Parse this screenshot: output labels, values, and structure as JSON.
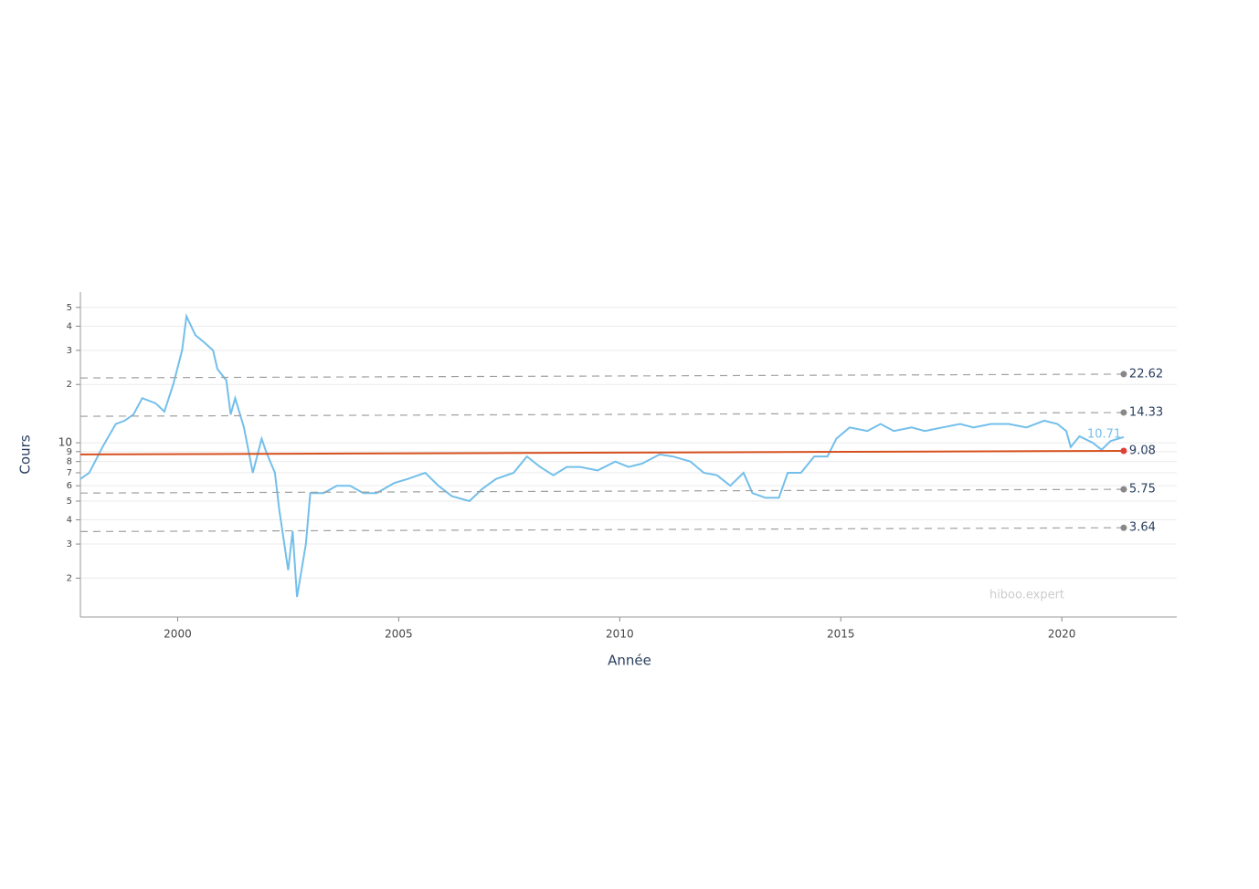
{
  "chart_data": {
    "type": "line",
    "xlabel": "Année",
    "ylabel": "Cours",
    "watermark": "hiboo.expert",
    "log_y": true,
    "grid": true,
    "xlim": [
      1997.8,
      2022.6
    ],
    "ylim": [
      1.26,
      60
    ],
    "xticks": [
      2000,
      2005,
      2010,
      2015,
      2020
    ],
    "yticks": [
      2,
      3,
      4,
      5,
      6,
      7,
      8,
      9,
      10,
      {
        "value": 20,
        "label": "2"
      },
      {
        "value": 30,
        "label": "3"
      },
      {
        "value": 40,
        "label": "4"
      },
      {
        "value": 50,
        "label": "5"
      }
    ],
    "series": [
      {
        "color": "#73bfea",
        "dash": false,
        "end_label": "10.71",
        "x": [
          1997.8,
          1998.0,
          1998.3,
          1998.6,
          1998.8,
          1999.0,
          1999.2,
          1999.5,
          1999.7,
          1999.9,
          2000.1,
          2000.2,
          2000.4,
          2000.6,
          2000.8,
          2000.9,
          2001.1,
          2001.2,
          2001.3,
          2001.5,
          2001.7,
          2001.9,
          2002.0,
          2002.2,
          2002.3,
          2002.5,
          2002.6,
          2002.7,
          2002.9,
          2003.0,
          2003.3,
          2003.6,
          2003.9,
          2004.2,
          2004.5,
          2004.9,
          2005.2,
          2005.6,
          2005.9,
          2006.2,
          2006.6,
          2006.9,
          2007.2,
          2007.6,
          2007.9,
          2008.2,
          2008.5,
          2008.8,
          2009.1,
          2009.5,
          2009.9,
          2010.2,
          2010.5,
          2010.9,
          2011.2,
          2011.6,
          2011.9,
          2012.2,
          2012.5,
          2012.8,
          2013.0,
          2013.3,
          2013.6,
          2013.8,
          2014.1,
          2014.4,
          2014.7,
          2014.9,
          2015.2,
          2015.6,
          2015.9,
          2016.2,
          2016.6,
          2016.9,
          2017.3,
          2017.7,
          2018.0,
          2018.4,
          2018.8,
          2019.2,
          2019.6,
          2019.9,
          2020.1,
          2020.2,
          2020.4,
          2020.7,
          2020.9,
          2021.1,
          2021.4
        ],
        "values": [
          6.5,
          7,
          9.5,
          12.5,
          13,
          14,
          17,
          16,
          14.5,
          20,
          30,
          45,
          36,
          33,
          30,
          24,
          21,
          14,
          17,
          12,
          7,
          10.5,
          9,
          7,
          4.5,
          2.2,
          3.5,
          1.6,
          3,
          5.5,
          5.5,
          6,
          6,
          5.5,
          5.5,
          6.2,
          6.5,
          7,
          6,
          5.3,
          5,
          5.8,
          6.5,
          7,
          8.5,
          7.5,
          6.8,
          7.5,
          7.5,
          7.2,
          8,
          7.5,
          7.8,
          8.7,
          8.5,
          8,
          7,
          6.8,
          6,
          7,
          5.5,
          5.2,
          5.2,
          7,
          7,
          8.5,
          8.5,
          10.5,
          12,
          11.5,
          12.5,
          11.5,
          12,
          11.5,
          12,
          12.5,
          12,
          12.5,
          12.5,
          12,
          13,
          12.5,
          11.5,
          9.5,
          10.8,
          10,
          9.2,
          10.2,
          10.71
        ]
      },
      {
        "color": "#d6501e",
        "dash": false,
        "end_label": "9.08",
        "marker_color": "#e0403a",
        "x": [
          1997.8,
          2021.4
        ],
        "values": [
          8.7,
          9.08
        ]
      },
      {
        "color": "#a0a0a0",
        "dash": true,
        "end_label": "22.62",
        "marker_color": "#888888",
        "x": [
          1997.8,
          2021.4
        ],
        "values": [
          21.6,
          22.62
        ]
      },
      {
        "color": "#a0a0a0",
        "dash": true,
        "end_label": "14.33",
        "marker_color": "#888888",
        "x": [
          1997.8,
          2021.4
        ],
        "values": [
          13.7,
          14.33
        ]
      },
      {
        "color": "#a0a0a0",
        "dash": true,
        "end_label": "5.75",
        "marker_color": "#888888",
        "x": [
          1997.8,
          2021.4
        ],
        "values": [
          5.5,
          5.75
        ]
      },
      {
        "color": "#a0a0a0",
        "dash": true,
        "end_label": "3.64",
        "marker_color": "#888888",
        "x": [
          1997.8,
          2021.4
        ],
        "values": [
          3.48,
          3.64
        ]
      }
    ]
  }
}
